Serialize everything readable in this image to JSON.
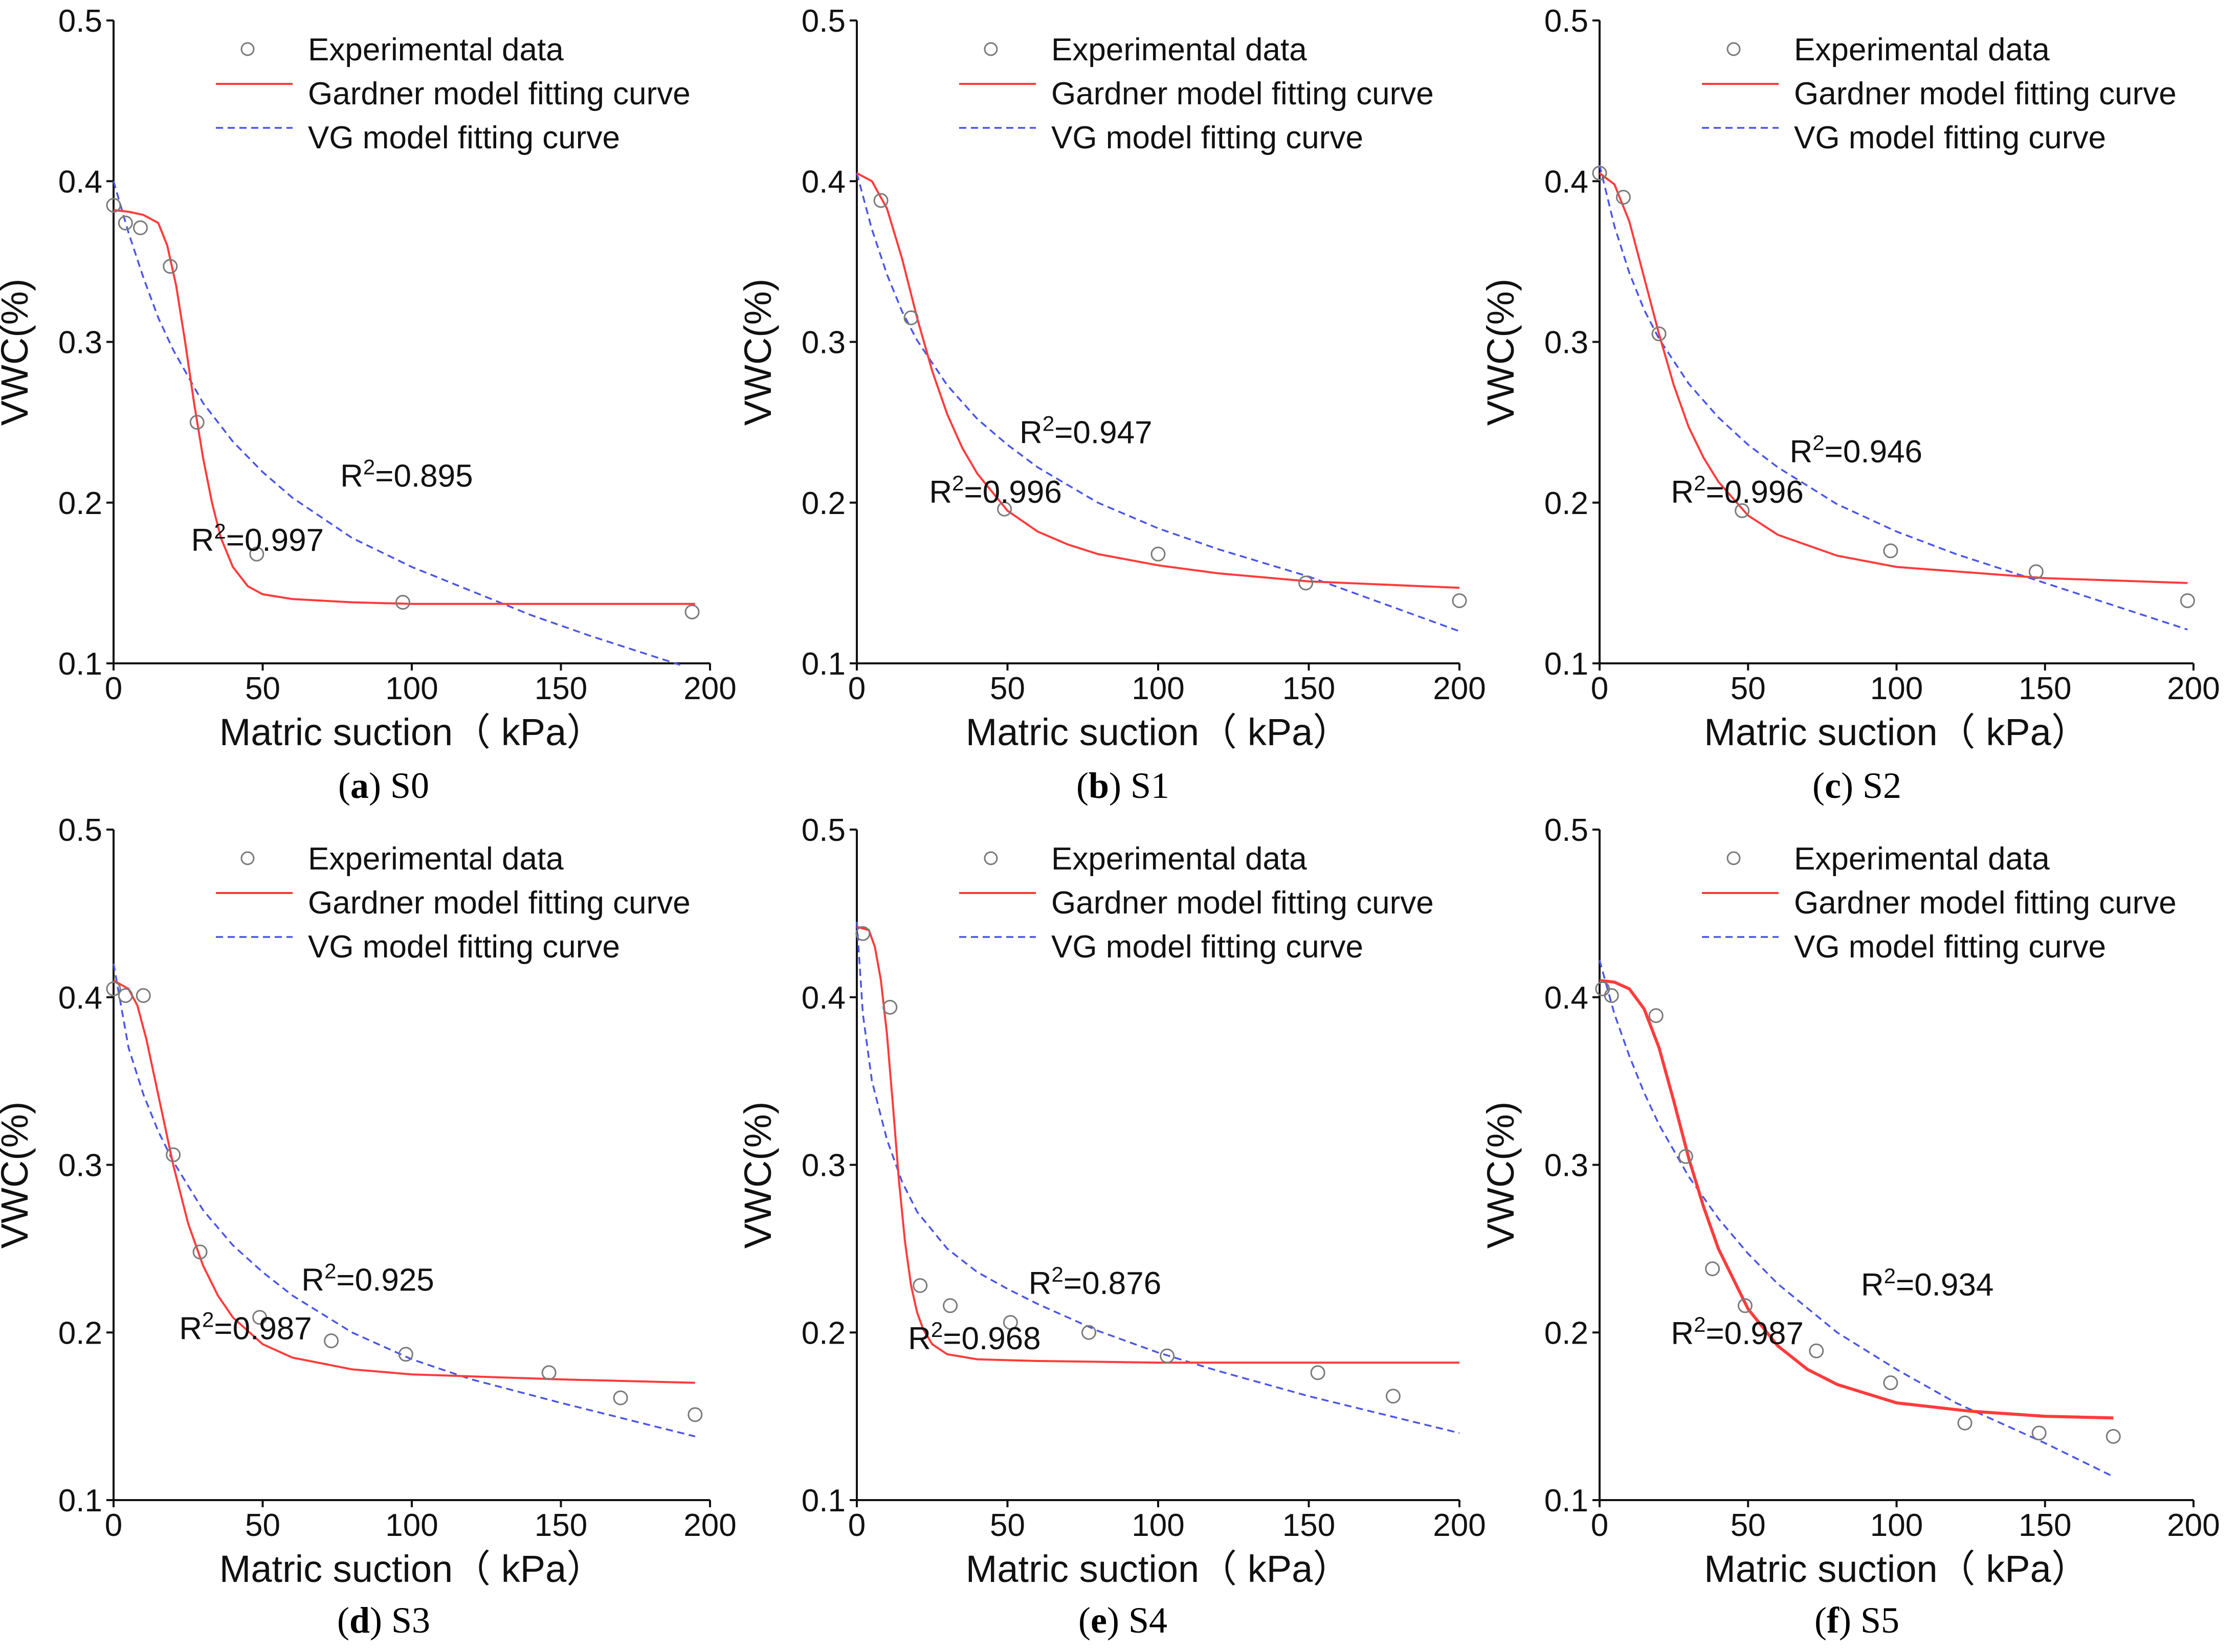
{
  "colors": {
    "gardner": "#ff3b3b",
    "vg": "#4a55e6",
    "marker": "#7a7a7a",
    "axis": "#111111"
  },
  "chart_data": [
    {
      "id": "a",
      "type": "scatter",
      "caption_letter": "a",
      "caption_name": "S0",
      "xlabel": "Matric suction（ kPa）",
      "ylabel": "VWC(%)",
      "xlim": [
        0,
        200
      ],
      "ylim": [
        0.1,
        0.5
      ],
      "xticks": [
        "0",
        "50",
        "100",
        "150",
        "200"
      ],
      "yticks": [
        "0.1",
        "0.2",
        "0.3",
        "0.4",
        "0.5"
      ],
      "legend": [
        "Experimental data",
        "Gardner model fitting curve",
        "VG model fitting curve"
      ],
      "experimental": {
        "x": [
          0,
          4,
          9,
          19,
          28,
          48,
          97,
          194
        ],
        "y": [
          0.385,
          0.374,
          0.371,
          0.347,
          0.25,
          0.168,
          0.138,
          0.132
        ]
      },
      "gardner": {
        "x": [
          0,
          5,
          10,
          15,
          18,
          21,
          24,
          27,
          30,
          33,
          36,
          40,
          45,
          50,
          60,
          80,
          100,
          150,
          195
        ],
        "y": [
          0.382,
          0.381,
          0.379,
          0.374,
          0.36,
          0.335,
          0.3,
          0.262,
          0.228,
          0.2,
          0.178,
          0.16,
          0.148,
          0.143,
          0.14,
          0.138,
          0.137,
          0.137,
          0.137
        ]
      },
      "vg": {
        "x": [
          0,
          5,
          10,
          15,
          20,
          30,
          40,
          50,
          60,
          80,
          100,
          120,
          140,
          160,
          180,
          190
        ],
        "y": [
          0.4,
          0.368,
          0.34,
          0.315,
          0.295,
          0.262,
          0.238,
          0.219,
          0.203,
          0.178,
          0.16,
          0.145,
          0.13,
          0.117,
          0.105,
          0.099
        ]
      },
      "r2_gardner": "0.997",
      "r2_vg": "0.895"
    },
    {
      "id": "b",
      "type": "scatter",
      "caption_letter": "b",
      "caption_name": "S1",
      "xlabel": "Matric suction（ kPa）",
      "ylabel": "VWC(%)",
      "xlim": [
        0,
        200
      ],
      "ylim": [
        0.1,
        0.5
      ],
      "xticks": [
        "0",
        "50",
        "100",
        "150",
        "200"
      ],
      "yticks": [
        "0.1",
        "0.2",
        "0.3",
        "0.4",
        "0.5"
      ],
      "legend": [
        "Experimental data",
        "Gardner model fitting curve",
        "VG model fitting curve"
      ],
      "experimental": {
        "x": [
          8,
          18,
          49,
          100,
          149,
          200
        ],
        "y": [
          0.388,
          0.315,
          0.196,
          0.168,
          0.15,
          0.139
        ]
      },
      "gardner": {
        "x": [
          0,
          5,
          10,
          15,
          20,
          25,
          30,
          35,
          40,
          50,
          60,
          70,
          80,
          100,
          120,
          150,
          200
        ],
        "y": [
          0.405,
          0.4,
          0.383,
          0.352,
          0.315,
          0.282,
          0.255,
          0.234,
          0.218,
          0.195,
          0.182,
          0.174,
          0.168,
          0.161,
          0.156,
          0.151,
          0.147
        ]
      },
      "vg": {
        "x": [
          0,
          5,
          10,
          15,
          20,
          30,
          40,
          50,
          60,
          80,
          100,
          120,
          150,
          200
        ],
        "y": [
          0.405,
          0.37,
          0.342,
          0.319,
          0.301,
          0.273,
          0.252,
          0.236,
          0.222,
          0.2,
          0.184,
          0.171,
          0.154,
          0.12
        ]
      },
      "r2_gardner": "0.996",
      "r2_vg": "0.947"
    },
    {
      "id": "c",
      "type": "scatter",
      "caption_letter": "c",
      "caption_name": "S2",
      "xlabel": "Matric suction（ kPa）",
      "ylabel": "VWC(%)",
      "xlim": [
        0,
        200
      ],
      "ylim": [
        0.1,
        0.5
      ],
      "xticks": [
        "0",
        "50",
        "100",
        "150",
        "200"
      ],
      "yticks": [
        "0.1",
        "0.2",
        "0.3",
        "0.4",
        "0.5"
      ],
      "legend": [
        "Experimental data",
        "Gardner model fitting curve",
        "VG model fitting curve"
      ],
      "experimental": {
        "x": [
          0,
          8,
          20,
          48,
          98,
          147,
          198
        ],
        "y": [
          0.405,
          0.39,
          0.305,
          0.195,
          0.17,
          0.157,
          0.139
        ]
      },
      "gardner": {
        "x": [
          0,
          5,
          10,
          15,
          20,
          25,
          30,
          35,
          40,
          50,
          60,
          80,
          100,
          150,
          198
        ],
        "y": [
          0.405,
          0.398,
          0.375,
          0.34,
          0.305,
          0.273,
          0.247,
          0.228,
          0.213,
          0.192,
          0.18,
          0.167,
          0.16,
          0.153,
          0.15
        ]
      },
      "vg": {
        "x": [
          0,
          5,
          10,
          15,
          20,
          30,
          40,
          50,
          60,
          80,
          100,
          120,
          150,
          198
        ],
        "y": [
          0.41,
          0.372,
          0.343,
          0.32,
          0.302,
          0.274,
          0.253,
          0.236,
          0.222,
          0.199,
          0.182,
          0.168,
          0.15,
          0.121
        ]
      },
      "r2_gardner": "0.996",
      "r2_vg": "0.946"
    },
    {
      "id": "d",
      "type": "scatter",
      "caption_letter": "d",
      "caption_name": "S3",
      "xlabel": "Matric suction（ kPa）",
      "ylabel": "VWC(%)",
      "xlim": [
        0,
        200
      ],
      "ylim": [
        0.1,
        0.5
      ],
      "xticks": [
        "0",
        "50",
        "100",
        "150",
        "200"
      ],
      "yticks": [
        "0.1",
        "0.2",
        "0.3",
        "0.4",
        "0.5"
      ],
      "legend": [
        "Experimental data",
        "Gardner model fitting curve",
        "VG model fitting curve"
      ],
      "experimental": {
        "x": [
          0,
          4,
          10,
          20,
          29,
          49,
          73,
          98,
          146,
          170,
          195
        ],
        "y": [
          0.405,
          0.401,
          0.401,
          0.306,
          0.248,
          0.209,
          0.195,
          0.187,
          0.176,
          0.161,
          0.151
        ]
      },
      "gardner": {
        "x": [
          0,
          5,
          8,
          11,
          14,
          17,
          20,
          25,
          30,
          35,
          40,
          50,
          60,
          80,
          100,
          150,
          195
        ],
        "y": [
          0.41,
          0.405,
          0.395,
          0.375,
          0.35,
          0.325,
          0.3,
          0.265,
          0.24,
          0.222,
          0.209,
          0.193,
          0.185,
          0.178,
          0.175,
          0.172,
          0.17
        ]
      },
      "vg": {
        "x": [
          0,
          5,
          10,
          15,
          20,
          30,
          40,
          50,
          60,
          80,
          100,
          120,
          150,
          195
        ],
        "y": [
          0.42,
          0.37,
          0.342,
          0.32,
          0.302,
          0.273,
          0.252,
          0.236,
          0.222,
          0.2,
          0.184,
          0.172,
          0.158,
          0.138
        ]
      },
      "r2_gardner": "0.987",
      "r2_vg": "0.925"
    },
    {
      "id": "e",
      "type": "scatter",
      "caption_letter": "e",
      "caption_name": "S4",
      "xlabel": "Matric suction（ kPa）",
      "ylabel": "VWC(%)",
      "xlim": [
        0,
        200
      ],
      "ylim": [
        0.1,
        0.5
      ],
      "xticks": [
        "0",
        "50",
        "100",
        "150",
        "200"
      ],
      "yticks": [
        "0.1",
        "0.2",
        "0.3",
        "0.4",
        "0.5"
      ],
      "legend": [
        "Experimental data",
        "Gardner model fitting curve",
        "VG model fitting curve"
      ],
      "experimental": {
        "x": [
          2,
          11,
          21,
          31,
          51,
          77,
          103,
          153,
          178
        ],
        "y": [
          0.438,
          0.394,
          0.228,
          0.216,
          0.206,
          0.2,
          0.186,
          0.176,
          0.162
        ]
      },
      "gardner": {
        "x": [
          0,
          4,
          6,
          8,
          10,
          12,
          14,
          16,
          18,
          20,
          22,
          25,
          30,
          40,
          60,
          100,
          200
        ],
        "y": [
          0.442,
          0.44,
          0.43,
          0.41,
          0.378,
          0.335,
          0.29,
          0.254,
          0.228,
          0.212,
          0.202,
          0.193,
          0.187,
          0.184,
          0.183,
          0.182,
          0.182
        ]
      },
      "vg": {
        "x": [
          0,
          2,
          5,
          10,
          15,
          20,
          30,
          40,
          50,
          60,
          80,
          100,
          120,
          150,
          200
        ],
        "y": [
          0.445,
          0.39,
          0.35,
          0.315,
          0.29,
          0.272,
          0.25,
          0.236,
          0.226,
          0.217,
          0.201,
          0.188,
          0.177,
          0.162,
          0.14
        ]
      },
      "r2_gardner": "0.968",
      "r2_vg": "0.876"
    },
    {
      "id": "f",
      "type": "scatter",
      "caption_letter": "f",
      "caption_name": "S5",
      "xlabel": "Matric suction（ kPa）",
      "ylabel": "VWC(%)",
      "xlim": [
        0,
        200
      ],
      "ylim": [
        0.1,
        0.5
      ],
      "xticks": [
        "0",
        "50",
        "100",
        "150",
        "200"
      ],
      "yticks": [
        "0.1",
        "0.2",
        "0.3",
        "0.4",
        "0.5"
      ],
      "legend": [
        "Experimental data",
        "Gardner model fitting curve",
        "VG model fitting curve"
      ],
      "experimental": {
        "x": [
          1,
          4,
          19,
          29,
          38,
          49,
          73,
          98,
          123,
          148,
          173
        ],
        "y": [
          0.405,
          0.401,
          0.389,
          0.305,
          0.238,
          0.216,
          0.189,
          0.17,
          0.146,
          0.14,
          0.138
        ]
      },
      "gardner": {
        "x": [
          0,
          5,
          10,
          15,
          20,
          25,
          30,
          35,
          40,
          50,
          60,
          70,
          80,
          100,
          125,
          150,
          173
        ],
        "y": [
          0.41,
          0.409,
          0.405,
          0.393,
          0.37,
          0.338,
          0.304,
          0.275,
          0.25,
          0.214,
          0.192,
          0.178,
          0.169,
          0.158,
          0.153,
          0.15,
          0.149
        ]
      },
      "vg": {
        "x": [
          0,
          5,
          10,
          15,
          20,
          30,
          40,
          50,
          60,
          80,
          100,
          120,
          150,
          173
        ],
        "y": [
          0.422,
          0.39,
          0.365,
          0.343,
          0.324,
          0.293,
          0.268,
          0.247,
          0.229,
          0.2,
          0.178,
          0.158,
          0.134,
          0.114
        ]
      },
      "r2_gardner": "0.987",
      "r2_vg": "0.934"
    }
  ]
}
